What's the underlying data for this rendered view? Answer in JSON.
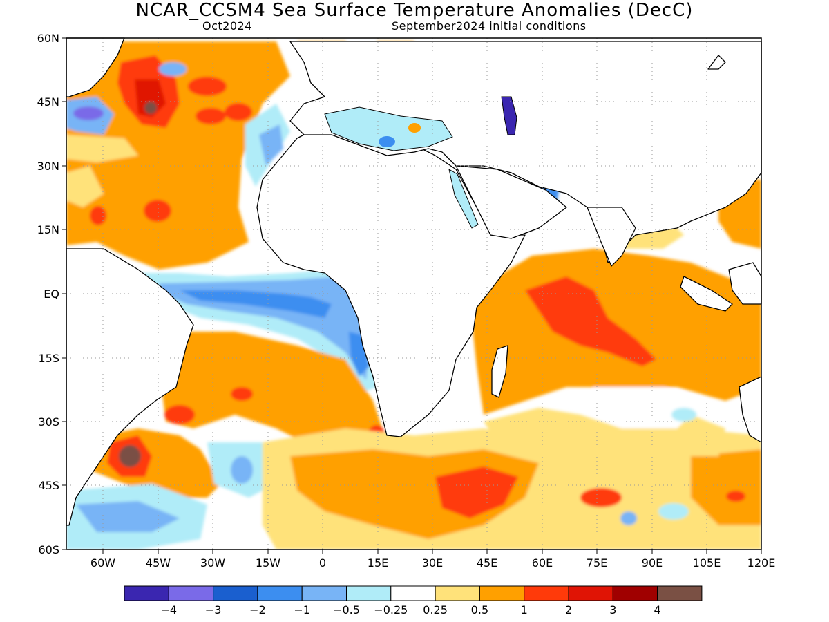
{
  "header": {
    "title": "NCAR_CCSM4 Sea Surface Temperature Anomalies (DecC)",
    "forecast_month": "Oct2024",
    "init_label": "September2024 initial conditions"
  },
  "map": {
    "lon_range": [
      -70,
      120
    ],
    "lat_range": [
      -60,
      60
    ],
    "lat_ticks": [
      "60N",
      "45N",
      "30N",
      "15N",
      "EQ",
      "15S",
      "30S",
      "45S",
      "60S"
    ],
    "lon_ticks": [
      "60W",
      "45W",
      "30W",
      "15W",
      "0",
      "15E",
      "30E",
      "45E",
      "60E",
      "75E",
      "90E",
      "105E",
      "120E"
    ],
    "grid": true,
    "ocean_color": "#ffffff",
    "coast_color": "#000000"
  },
  "legend": {
    "colors": [
      "#3a26b0",
      "#7a6ae8",
      "#1a5fcf",
      "#3c8ef0",
      "#78b4f6",
      "#b0ecf8",
      "#ffffff",
      "#ffe27a",
      "#ffa000",
      "#ff3a0a",
      "#e01405",
      "#a00000",
      "#7a5044"
    ],
    "labels": [
      "−4",
      "−3",
      "−2",
      "−1",
      "−0.5",
      "−0.25",
      "0.25",
      "0.5",
      "1",
      "2",
      "3",
      "4"
    ]
  }
}
